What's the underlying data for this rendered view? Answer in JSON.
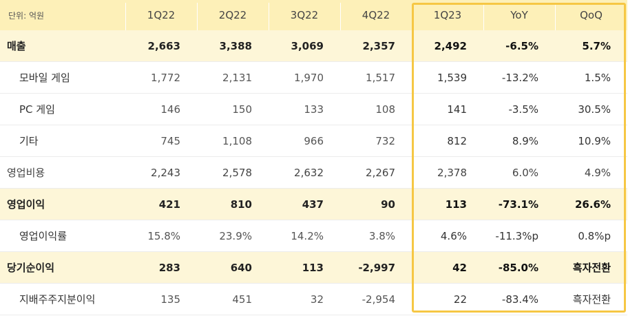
{
  "table": {
    "unit_label": "단위: 억원",
    "headers": [
      "1Q22",
      "2Q22",
      "3Q22",
      "4Q22",
      "1Q23",
      "YoY",
      "QoQ"
    ],
    "rows": [
      {
        "label": "매출",
        "values": [
          "2,663",
          "3,388",
          "3,069",
          "2,357",
          "2,492",
          "-6.5%",
          "5.7%"
        ]
      },
      {
        "label": "모바일 게임",
        "values": [
          "1,772",
          "2,131",
          "1,970",
          "1,517",
          "1,539",
          "-13.2%",
          "1.5%"
        ]
      },
      {
        "label": "PC 게임",
        "values": [
          "146",
          "150",
          "133",
          "108",
          "141",
          "-3.5%",
          "30.5%"
        ]
      },
      {
        "label": "기타",
        "values": [
          "745",
          "1,108",
          "966",
          "732",
          "812",
          "8.9%",
          "10.9%"
        ]
      },
      {
        "label": "영업비용",
        "values": [
          "2,243",
          "2,578",
          "2,632",
          "2,267",
          "2,378",
          "6.0%",
          "4.9%"
        ]
      },
      {
        "label": "영업이익",
        "values": [
          "421",
          "810",
          "437",
          "90",
          "113",
          "-73.1%",
          "26.6%"
        ]
      },
      {
        "label": "영업이익률",
        "values": [
          "15.8%",
          "23.9%",
          "14.2%",
          "3.8%",
          "4.6%",
          "-11.3%p",
          "0.8%p"
        ]
      },
      {
        "label": "당기순이익",
        "values": [
          "283",
          "640",
          "113",
          "-2,997",
          "42",
          "-85.0%",
          "흑자전환"
        ]
      },
      {
        "label": "지배주주지분이익",
        "values": [
          "135",
          "451",
          "32",
          "-2,954",
          "22",
          "-83.4%",
          "흑자전환"
        ]
      }
    ]
  },
  "colors": {
    "header_bg": "#fdf0b8",
    "bold_row_bg": "#fdf6d8",
    "highlight_border": "#f6c744"
  }
}
